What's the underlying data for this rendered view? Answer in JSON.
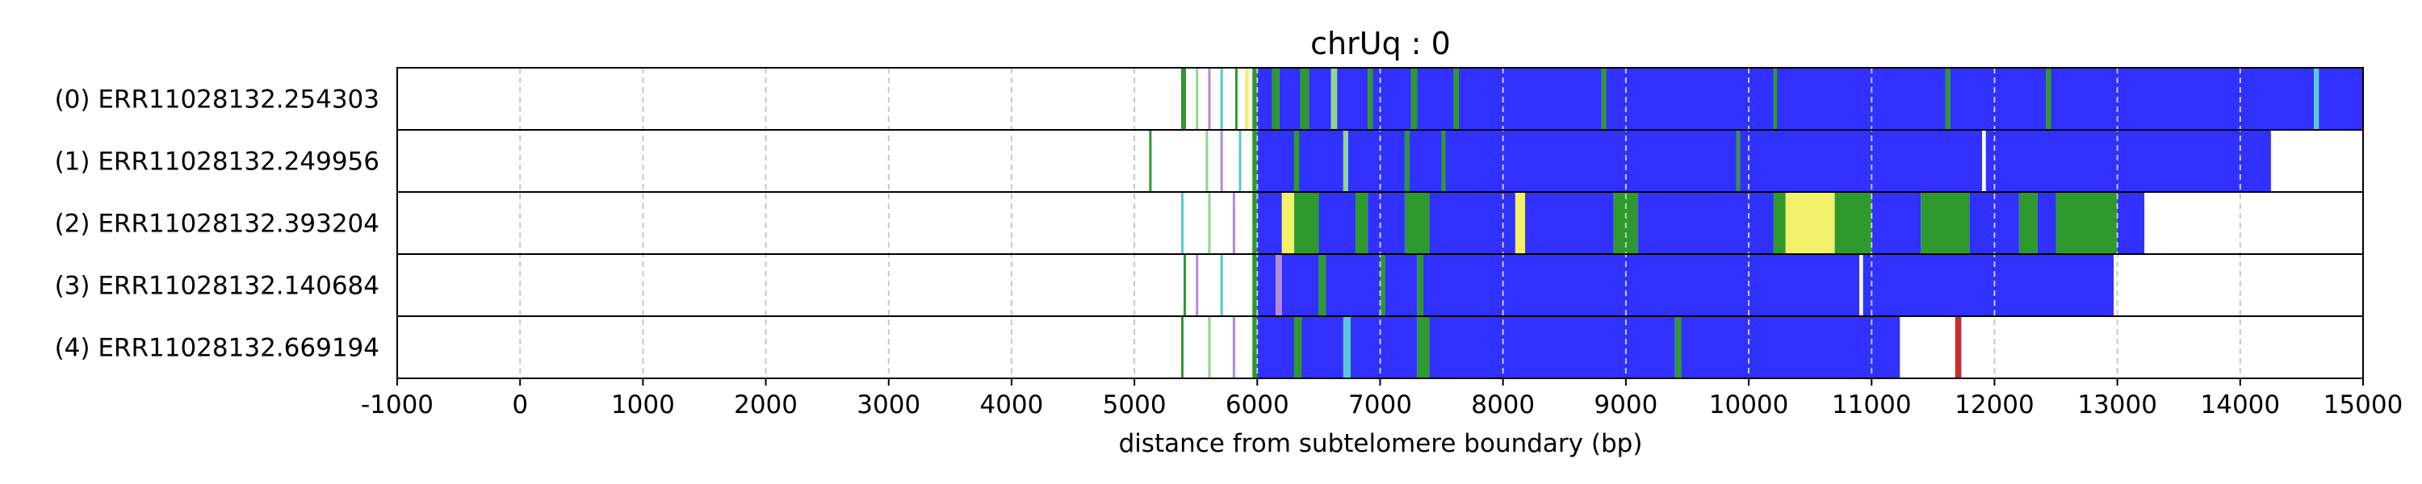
{
  "chart_data": {
    "type": "heatmap",
    "title": "chrUq : 0",
    "xlabel": "distance from subtelomere boundary (bp)",
    "xlim": [
      -1000,
      15000
    ],
    "x_ticks": [
      -1000,
      0,
      1000,
      2000,
      3000,
      4000,
      5000,
      6000,
      7000,
      8000,
      9000,
      10000,
      11000,
      12000,
      13000,
      14000,
      15000
    ],
    "x_tick_labels": [
      "-1000",
      "0",
      "1000",
      "2000",
      "3000",
      "4000",
      "5000",
      "6000",
      "7000",
      "8000",
      "9000",
      "10000",
      "11000",
      "12000",
      "13000",
      "14000",
      "15000"
    ],
    "grid": "vertical dashed",
    "colors": {
      "blue": "#3030ff",
      "green": "#2e9a2e",
      "lightgreen": "#8fd68f",
      "yellow": "#f3f06a",
      "purple": "#b58ad8",
      "cyan": "#59c8d8",
      "red": "#c03030",
      "grey": "#9a9a9a",
      "white": "#ffffff"
    },
    "rows": [
      {
        "label": "(0) ERR11028132.254303",
        "read_start": 5380,
        "read_end": 15000,
        "segments": [
          {
            "start": 5380,
            "end": 5420,
            "color": "green"
          },
          {
            "start": 5500,
            "end": 5520,
            "color": "lightgreen"
          },
          {
            "start": 5600,
            "end": 5620,
            "color": "purple"
          },
          {
            "start": 5700,
            "end": 5720,
            "color": "cyan"
          },
          {
            "start": 5820,
            "end": 5840,
            "color": "green"
          },
          {
            "start": 5900,
            "end": 5930,
            "color": "yellow"
          },
          {
            "start": 5960,
            "end": 6000,
            "color": "green"
          },
          {
            "start": 6000,
            "end": 6120,
            "color": "blue"
          },
          {
            "start": 6120,
            "end": 6180,
            "color": "green"
          },
          {
            "start": 6180,
            "end": 6350,
            "color": "blue"
          },
          {
            "start": 6350,
            "end": 6420,
            "color": "green"
          },
          {
            "start": 6420,
            "end": 6600,
            "color": "blue"
          },
          {
            "start": 6600,
            "end": 6650,
            "color": "lightgreen"
          },
          {
            "start": 6650,
            "end": 6900,
            "color": "blue"
          },
          {
            "start": 6900,
            "end": 6940,
            "color": "green"
          },
          {
            "start": 6940,
            "end": 7250,
            "color": "blue"
          },
          {
            "start": 7250,
            "end": 7300,
            "color": "green"
          },
          {
            "start": 7300,
            "end": 7600,
            "color": "blue"
          },
          {
            "start": 7600,
            "end": 7640,
            "color": "green"
          },
          {
            "start": 7640,
            "end": 8800,
            "color": "blue"
          },
          {
            "start": 8800,
            "end": 8840,
            "color": "green"
          },
          {
            "start": 8840,
            "end": 10200,
            "color": "blue"
          },
          {
            "start": 10200,
            "end": 10230,
            "color": "green"
          },
          {
            "start": 10230,
            "end": 11600,
            "color": "blue"
          },
          {
            "start": 11600,
            "end": 11640,
            "color": "green"
          },
          {
            "start": 11640,
            "end": 12420,
            "color": "blue"
          },
          {
            "start": 12420,
            "end": 12460,
            "color": "green"
          },
          {
            "start": 12460,
            "end": 14600,
            "color": "blue"
          },
          {
            "start": 14600,
            "end": 14640,
            "color": "cyan"
          },
          {
            "start": 14640,
            "end": 15000,
            "color": "blue"
          }
        ]
      },
      {
        "label": "(1) ERR11028132.249956",
        "read_start": 5120,
        "read_end": 14250,
        "segments": [
          {
            "start": 5120,
            "end": 5140,
            "color": "green"
          },
          {
            "start": 5580,
            "end": 5600,
            "color": "lightgreen"
          },
          {
            "start": 5700,
            "end": 5720,
            "color": "purple"
          },
          {
            "start": 5850,
            "end": 5870,
            "color": "cyan"
          },
          {
            "start": 5960,
            "end": 6000,
            "color": "green"
          },
          {
            "start": 6000,
            "end": 6300,
            "color": "blue"
          },
          {
            "start": 6300,
            "end": 6340,
            "color": "green"
          },
          {
            "start": 6340,
            "end": 6700,
            "color": "blue"
          },
          {
            "start": 6700,
            "end": 6740,
            "color": "lightgreen"
          },
          {
            "start": 6740,
            "end": 7200,
            "color": "blue"
          },
          {
            "start": 7200,
            "end": 7240,
            "color": "green"
          },
          {
            "start": 7240,
            "end": 7500,
            "color": "blue"
          },
          {
            "start": 7500,
            "end": 7530,
            "color": "green"
          },
          {
            "start": 7530,
            "end": 9900,
            "color": "blue"
          },
          {
            "start": 9900,
            "end": 9930,
            "color": "green"
          },
          {
            "start": 9930,
            "end": 11900,
            "color": "blue"
          },
          {
            "start": 11900,
            "end": 11930,
            "color": "white"
          },
          {
            "start": 11930,
            "end": 14250,
            "color": "blue"
          }
        ]
      },
      {
        "label": "(2) ERR11028132.393204",
        "read_start": 5380,
        "read_end": 13220,
        "segments": [
          {
            "start": 5380,
            "end": 5400,
            "color": "cyan"
          },
          {
            "start": 5600,
            "end": 5620,
            "color": "lightgreen"
          },
          {
            "start": 5800,
            "end": 5820,
            "color": "purple"
          },
          {
            "start": 5960,
            "end": 6000,
            "color": "green"
          },
          {
            "start": 6000,
            "end": 6200,
            "color": "blue"
          },
          {
            "start": 6200,
            "end": 6300,
            "color": "yellow"
          },
          {
            "start": 6300,
            "end": 6500,
            "color": "green"
          },
          {
            "start": 6500,
            "end": 6800,
            "color": "blue"
          },
          {
            "start": 6800,
            "end": 6900,
            "color": "green"
          },
          {
            "start": 6900,
            "end": 7200,
            "color": "blue"
          },
          {
            "start": 7200,
            "end": 7400,
            "color": "green"
          },
          {
            "start": 7400,
            "end": 8100,
            "color": "blue"
          },
          {
            "start": 8100,
            "end": 8180,
            "color": "yellow"
          },
          {
            "start": 8180,
            "end": 8900,
            "color": "blue"
          },
          {
            "start": 8900,
            "end": 9100,
            "color": "green"
          },
          {
            "start": 9100,
            "end": 10200,
            "color": "blue"
          },
          {
            "start": 10200,
            "end": 10300,
            "color": "green"
          },
          {
            "start": 10300,
            "end": 10700,
            "color": "yellow"
          },
          {
            "start": 10700,
            "end": 11000,
            "color": "green"
          },
          {
            "start": 11000,
            "end": 11400,
            "color": "blue"
          },
          {
            "start": 11400,
            "end": 11800,
            "color": "green"
          },
          {
            "start": 11800,
            "end": 12200,
            "color": "blue"
          },
          {
            "start": 12200,
            "end": 12350,
            "color": "green"
          },
          {
            "start": 12350,
            "end": 12500,
            "color": "blue"
          },
          {
            "start": 12500,
            "end": 13000,
            "color": "green"
          },
          {
            "start": 13000,
            "end": 13220,
            "color": "blue"
          }
        ]
      },
      {
        "label": "(3) ERR11028132.140684",
        "read_start": 5400,
        "read_end": 12970,
        "segments": [
          {
            "start": 5400,
            "end": 5420,
            "color": "green"
          },
          {
            "start": 5500,
            "end": 5520,
            "color": "purple"
          },
          {
            "start": 5700,
            "end": 5720,
            "color": "cyan"
          },
          {
            "start": 5960,
            "end": 6000,
            "color": "green"
          },
          {
            "start": 6000,
            "end": 6150,
            "color": "blue"
          },
          {
            "start": 6150,
            "end": 6200,
            "color": "purple"
          },
          {
            "start": 6200,
            "end": 6500,
            "color": "blue"
          },
          {
            "start": 6500,
            "end": 6560,
            "color": "green"
          },
          {
            "start": 6560,
            "end": 7000,
            "color": "blue"
          },
          {
            "start": 7000,
            "end": 7040,
            "color": "green"
          },
          {
            "start": 7040,
            "end": 7300,
            "color": "blue"
          },
          {
            "start": 7300,
            "end": 7350,
            "color": "green"
          },
          {
            "start": 7350,
            "end": 10900,
            "color": "blue"
          },
          {
            "start": 10900,
            "end": 10930,
            "color": "white"
          },
          {
            "start": 10930,
            "end": 12970,
            "color": "blue"
          }
        ]
      },
      {
        "label": "(4) ERR11028132.669194",
        "read_start": 5380,
        "read_end": 11230,
        "segments": [
          {
            "start": 5380,
            "end": 5400,
            "color": "green"
          },
          {
            "start": 5600,
            "end": 5620,
            "color": "lightgreen"
          },
          {
            "start": 5800,
            "end": 5820,
            "color": "purple"
          },
          {
            "start": 5960,
            "end": 6000,
            "color": "green"
          },
          {
            "start": 6000,
            "end": 6300,
            "color": "blue"
          },
          {
            "start": 6300,
            "end": 6360,
            "color": "green"
          },
          {
            "start": 6360,
            "end": 6700,
            "color": "blue"
          },
          {
            "start": 6700,
            "end": 6760,
            "color": "cyan"
          },
          {
            "start": 6760,
            "end": 7300,
            "color": "blue"
          },
          {
            "start": 7300,
            "end": 7400,
            "color": "green"
          },
          {
            "start": 7400,
            "end": 9400,
            "color": "blue"
          },
          {
            "start": 9400,
            "end": 9450,
            "color": "green"
          },
          {
            "start": 9450,
            "end": 11230,
            "color": "blue"
          },
          {
            "start": 11680,
            "end": 11730,
            "color": "red"
          }
        ]
      }
    ]
  }
}
